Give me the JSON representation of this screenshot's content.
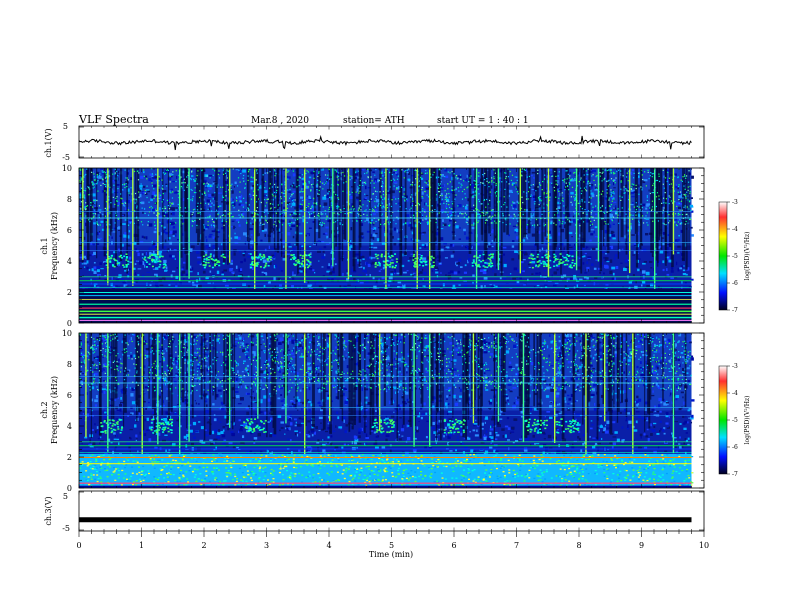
{
  "header": {
    "title": "VLF  Spectra",
    "date": "Mar.8  , 2020",
    "station": "station= ATH",
    "start_ut": "start  UT  =   1  : 40 : 1"
  },
  "chart_data": [
    {
      "type": "line",
      "name": "ch1-waveform",
      "ylabel": "ch.1(V)",
      "ylim": [
        -5,
        5
      ],
      "ytick_labels": [
        "5",
        "-5"
      ],
      "x_range_min": [
        0,
        9.8
      ],
      "approx_level_v": 0,
      "color": "#000000"
    },
    {
      "type": "heatmap",
      "name": "ch1-spectrogram",
      "ylabel": "ch.1\nFrequency  (kHz)",
      "ylim": [
        0,
        10
      ],
      "ytick_labels": [
        "0",
        "2",
        "4",
        "6",
        "8",
        "10"
      ],
      "x_range_min": [
        0,
        9.8
      ],
      "colorbar": {
        "label": "log(PSD)(V²/Hz)",
        "range": [
          -7,
          -3
        ],
        "tick_labels": [
          "-3",
          "-4",
          "-5",
          "-6",
          "-7"
        ],
        "colors": [
          "#ffffff",
          "#ff0000",
          "#ffff00",
          "#00ff00",
          "#00ffff",
          "#0000ff",
          "#000033"
        ]
      },
      "spectral_features": {
        "bright_vertical_spikes": [
          0.05,
          0.45,
          0.85,
          1.25,
          1.6,
          1.75,
          2.4,
          2.8,
          3.3,
          3.6,
          4.05,
          4.3,
          4.9,
          5.4,
          5.6,
          6.35,
          6.7,
          7.05,
          7.5,
          7.95,
          8.3,
          8.8,
          9.2,
          9.5
        ],
        "patches_4khz_min": [
          0.6,
          1.2,
          2.15,
          2.9,
          3.55,
          4.9,
          5.5,
          6.45,
          7.35,
          7.75
        ]
      }
    },
    {
      "type": "heatmap",
      "name": "ch2-spectrogram",
      "ylabel": "ch.2\nFrequency  (kHz)",
      "ylim": [
        0,
        10
      ],
      "ytick_labels": [
        "0",
        "2",
        "4",
        "6",
        "8",
        "10"
      ],
      "x_range_min": [
        0,
        9.8
      ],
      "colorbar": {
        "label": "log(PSD)(V²/Hz)",
        "range": [
          -7,
          -3
        ],
        "tick_labels": [
          "-3",
          "-4",
          "-5",
          "-6",
          "-7"
        ],
        "colors": [
          "#ffffff",
          "#ff0000",
          "#ffff00",
          "#00ff00",
          "#00ffff",
          "#0000ff",
          "#000033"
        ]
      },
      "spectral_features": {
        "bright_vertical_spikes": [
          0.1,
          0.45,
          1.0,
          1.25,
          1.6,
          1.75,
          2.4,
          2.85,
          3.3,
          3.6,
          4.0,
          4.8,
          5.35,
          5.6,
          6.3,
          6.7,
          7.1,
          7.6,
          8.1,
          8.4,
          8.85,
          9.5
        ],
        "patches_4khz_min": [
          0.5,
          1.3,
          2.8,
          4.85,
          6.0,
          7.3,
          7.8
        ]
      }
    },
    {
      "type": "line",
      "name": "ch3-waveform",
      "ylabel": "ch.3(V)",
      "ylim": [
        -5,
        5
      ],
      "ytick_labels": [
        "5",
        "-5"
      ],
      "x_range_min": [
        0,
        9.8
      ],
      "approx_level_v": -2.2,
      "color": "#000000"
    }
  ],
  "x_axis": {
    "label": "Time  (min)",
    "range": [
      0,
      10
    ],
    "tick_labels": [
      "0",
      "1",
      "2",
      "3",
      "4",
      "5",
      "6",
      "7",
      "8",
      "9",
      "10"
    ]
  }
}
